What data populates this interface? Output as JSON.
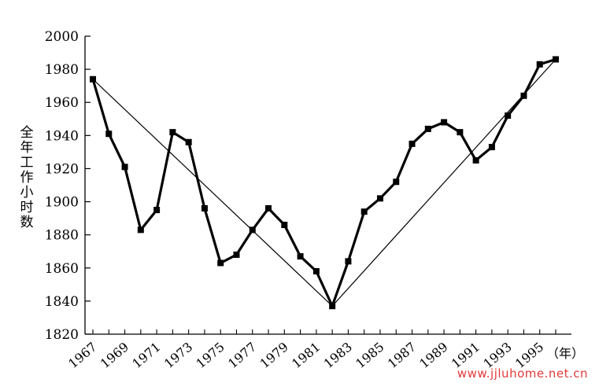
{
  "chart_data": {
    "type": "line",
    "ylabel": "全年工作小时数",
    "xlabel_unit": "（年）",
    "ylim": [
      1820,
      2000
    ],
    "yticks": [
      1820,
      1840,
      1860,
      1880,
      1900,
      1920,
      1940,
      1960,
      1980,
      2000
    ],
    "xlim": [
      1967,
      1996
    ],
    "xticks": [
      1967,
      1969,
      1971,
      1973,
      1975,
      1977,
      1979,
      1981,
      1983,
      1985,
      1987,
      1989,
      1991,
      1993,
      1995
    ],
    "grid": false,
    "series": [
      {
        "x": [
          1967,
          1968,
          1969,
          1970,
          1971,
          1972,
          1973,
          1974,
          1975,
          1976,
          1977,
          1978,
          1979,
          1980,
          1981,
          1982,
          1983,
          1984,
          1985,
          1986,
          1987,
          1988,
          1989,
          1990,
          1991,
          1992,
          1993,
          1994,
          1995,
          1996
        ],
        "values": [
          1974,
          1941,
          1921,
          1883,
          1895,
          1942,
          1936,
          1896,
          1863,
          1868,
          1883,
          1896,
          1886,
          1867,
          1858,
          1837,
          1864,
          1894,
          1902,
          1912,
          1935,
          1944,
          1948,
          1942,
          1925,
          1933,
          1952,
          1964,
          1983,
          1986
        ]
      }
    ],
    "trend_lines": [
      {
        "from": [
          1967,
          1974
        ],
        "to": [
          1982,
          1837
        ]
      },
      {
        "from": [
          1982,
          1837
        ],
        "to": [
          1996,
          1986
        ]
      }
    ]
  },
  "watermark": "www.jjluhome.net.cn"
}
